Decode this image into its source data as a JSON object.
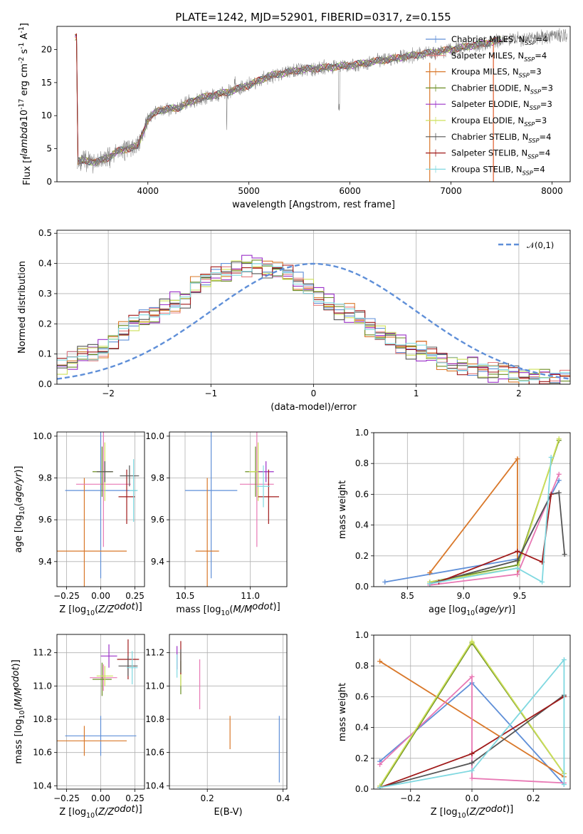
{
  "title": "PLATE=1242, MJD=52901, FIBERID=0317, z=0.155",
  "models": [
    {
      "label": "Chabrier MILES, N$_{SSP}$=4",
      "color": "#5f8fd8"
    },
    {
      "label": "Salpeter MILES, N$_{SSP}$=4",
      "color": "#e57d7d"
    },
    {
      "label": "Kroupa MILES, N$_{SSP}$=3",
      "color": "#d9782a"
    },
    {
      "label": "Chabrier ELODIE, N$_{SSP}$=3",
      "color": "#6b8e23"
    },
    {
      "label": "Salpeter ELODIE, N$_{SSP}$=3",
      "color": "#9b30c8"
    },
    {
      "label": "Kroupa ELODIE, N$_{SSP}$=3",
      "color": "#cde05a"
    },
    {
      "label": "Chabrier STELIB, N$_{SSP}$=4",
      "color": "#555555"
    },
    {
      "label": "Salpeter STELIB, N$_{SSP}$=4",
      "color": "#a01a1a"
    },
    {
      "label": "Kroupa STELIB, N$_{SSP}$=4",
      "color": "#7fd8e0"
    }
  ],
  "chart_data": [
    {
      "type": "line",
      "xlabel": "wavelength [Angstrom, rest frame]",
      "ylabel": "Flux [f$_\\lambda$10$^{-17}$ erg cm$^{-2}$ s$^{-1}$ A$^{-1}$]",
      "xlim": [
        3100,
        8180
      ],
      "ylim": [
        0,
        23.5
      ],
      "xticks": [
        4000,
        5000,
        6000,
        7000,
        8000
      ],
      "yticks": [
        0,
        5,
        10,
        15,
        20
      ],
      "observed_color": "#808080",
      "continuum_anchors": [
        [
          3300,
          3.2
        ],
        [
          3500,
          3.0
        ],
        [
          3600,
          3.6
        ],
        [
          3700,
          4.6
        ],
        [
          3900,
          5.4
        ],
        [
          4000,
          9.4
        ],
        [
          4100,
          10.8
        ],
        [
          4300,
          11.2
        ],
        [
          4500,
          12.6
        ],
        [
          4800,
          13.6
        ],
        [
          5000,
          14.6
        ],
        [
          5200,
          16.0
        ],
        [
          5500,
          16.9
        ],
        [
          6000,
          17.6
        ],
        [
          6500,
          18.8
        ],
        [
          7000,
          20.0
        ],
        [
          7500,
          21.4
        ],
        [
          8000,
          22.0
        ]
      ],
      "grid": false,
      "legend": "top-right"
    },
    {
      "type": "line",
      "xlabel": "(data-model)/error",
      "ylabel": "Normed distribution",
      "xlim": [
        -2.5,
        2.5
      ],
      "ylim": [
        0,
        0.51
      ],
      "xticks": [
        -2,
        -1,
        0,
        1,
        2
      ],
      "yticks": [
        0.0,
        0.1,
        0.2,
        0.3,
        0.4,
        0.5
      ],
      "reference_label": "$\\mathcal{N}(0,1)$",
      "reference_color": "#5f8fd8",
      "bin_width": 0.1,
      "hist_values": [
        0.06,
        0.08,
        0.1,
        0.1,
        0.12,
        0.15,
        0.17,
        0.2,
        0.22,
        0.23,
        0.25,
        0.27,
        0.29,
        0.32,
        0.34,
        0.36,
        0.37,
        0.38,
        0.39,
        0.4,
        0.38,
        0.37,
        0.36,
        0.34,
        0.32,
        0.29,
        0.27,
        0.25,
        0.23,
        0.21,
        0.19,
        0.17,
        0.15,
        0.13,
        0.12,
        0.11,
        0.09,
        0.08,
        0.07,
        0.06,
        0.06,
        0.05,
        0.04,
        0.04,
        0.03,
        0.03,
        0.03,
        0.02,
        0.02,
        0.02
      ],
      "grid": true,
      "legend": "top-right"
    },
    {
      "type": "scatter",
      "xlabel": "Z [log$_{10}$($Z/Z_\\odot$)]",
      "ylabel": "age  [log$_{10}$($age/yr$)]",
      "xlim": [
        -0.32,
        0.32
      ],
      "ylim": [
        9.28,
        10.02
      ],
      "xticks": [
        -0.25,
        0.0,
        0.25
      ],
      "yticks": [
        9.4,
        9.6,
        9.8,
        10.0
      ],
      "points": [
        {
          "x": 0.0,
          "y": 9.74,
          "xerr": 0.26,
          "yerr": 0.42,
          "color": "#5f8fd8"
        },
        {
          "x": -0.12,
          "y": 9.45,
          "xerr": 0.31,
          "yerr": 0.35,
          "color": "#d9782a"
        },
        {
          "x": 0.02,
          "y": 9.77,
          "xerr": 0.2,
          "yerr": 0.3,
          "color": "#e878b4"
        },
        {
          "x": 0.01,
          "y": 9.83,
          "xerr": 0.07,
          "yerr": 0.12,
          "color": "#6b8e23"
        },
        {
          "x": 0.03,
          "y": 9.83,
          "xerr": 0.06,
          "yerr": 0.14,
          "color": "#cde05a"
        },
        {
          "x": 0.03,
          "y": 9.83,
          "xerr": 0.06,
          "yerr": 0.05,
          "color": "#555555"
        },
        {
          "x": 0.19,
          "y": 9.71,
          "xerr": 0.06,
          "yerr": 0.13,
          "color": "#a01a1a"
        },
        {
          "x": 0.21,
          "y": 9.81,
          "xerr": 0.07,
          "yerr": 0.05,
          "color": "#555555"
        },
        {
          "x": 0.24,
          "y": 9.74,
          "xerr": 0.03,
          "yerr": 0.15,
          "color": "#7fd8e0"
        }
      ],
      "grid": true
    },
    {
      "type": "scatter",
      "xlabel": "mass [log$_{10}$($M/M_\\odot$)]",
      "ylabel": "",
      "xlim": [
        10.38,
        11.28
      ],
      "ylim": [
        9.28,
        10.02
      ],
      "xticks": [
        10.5,
        11.0
      ],
      "yticks": [
        9.4,
        9.6,
        9.8,
        10.0
      ],
      "points": [
        {
          "x": 10.7,
          "y": 9.74,
          "xerr": 0.2,
          "yerr": 0.42,
          "color": "#5f8fd8"
        },
        {
          "x": 10.67,
          "y": 9.45,
          "xerr": 0.09,
          "yerr": 0.35,
          "color": "#d9782a"
        },
        {
          "x": 11.05,
          "y": 9.77,
          "xerr": 0.13,
          "yerr": 0.3,
          "color": "#e878b4"
        },
        {
          "x": 11.04,
          "y": 9.83,
          "xerr": 0.08,
          "yerr": 0.12,
          "color": "#6b8e23"
        },
        {
          "x": 11.06,
          "y": 9.83,
          "xerr": 0.07,
          "yerr": 0.14,
          "color": "#cde05a"
        },
        {
          "x": 11.12,
          "y": 9.83,
          "xerr": 0.06,
          "yerr": 0.05,
          "color": "#9b30c8"
        },
        {
          "x": 11.14,
          "y": 9.71,
          "xerr": 0.08,
          "yerr": 0.13,
          "color": "#a01a1a"
        },
        {
          "x": 11.1,
          "y": 9.76,
          "xerr": 0.05,
          "yerr": 0.1,
          "color": "#7fd8e0"
        }
      ],
      "grid": true
    },
    {
      "type": "line",
      "xlabel": "age  [log$_{10}$($age/yr$)]",
      "ylabel": "mass weight",
      "xlim": [
        8.2,
        9.95
      ],
      "ylim": [
        0,
        1.0
      ],
      "xticks": [
        8.5,
        9.0,
        9.5
      ],
      "yticks": [
        0.0,
        0.2,
        0.4,
        0.6,
        0.8,
        1.0
      ],
      "series": [
        {
          "color": "#5f8fd8",
          "x": [
            8.3,
            9.48,
            9.85
          ],
          "y": [
            0.03,
            0.18,
            0.69
          ]
        },
        {
          "color": "#d9782a",
          "x": [
            8.7,
            9.48,
            9.48
          ],
          "y": [
            0.09,
            0.83,
            0.08
          ]
        },
        {
          "color": "#e878b4",
          "x": [
            8.7,
            9.48,
            9.85
          ],
          "y": [
            0.01,
            0.08,
            0.73
          ]
        },
        {
          "color": "#6b8e23",
          "x": [
            8.7,
            9.48,
            9.85
          ],
          "y": [
            0.03,
            0.14,
            0.95
          ]
        },
        {
          "color": "#cde05a",
          "x": [
            8.7,
            9.48,
            9.85
          ],
          "y": [
            0.03,
            0.12,
            0.96
          ]
        },
        {
          "color": "#555555",
          "x": [
            8.7,
            9.48,
            9.78,
            9.85,
            9.9
          ],
          "y": [
            0.02,
            0.17,
            0.6,
            0.61,
            0.21
          ]
        },
        {
          "color": "#a01a1a",
          "x": [
            8.78,
            9.48,
            9.7,
            9.78
          ],
          "y": [
            0.03,
            0.23,
            0.16,
            0.6
          ]
        },
        {
          "color": "#7fd8e0",
          "x": [
            8.7,
            9.48,
            9.7,
            9.78
          ],
          "y": [
            0.02,
            0.12,
            0.03,
            0.84
          ]
        }
      ],
      "grid": true
    },
    {
      "type": "scatter",
      "xlabel": "Z [log$_{10}$($Z/Z_\\odot$)]",
      "ylabel": "mass [log$_{10}$($M/M_\\odot$)]",
      "xlim": [
        -0.32,
        0.32
      ],
      "ylim": [
        10.38,
        11.31
      ],
      "xticks": [
        -0.25,
        0.0,
        0.25
      ],
      "yticks": [
        10.4,
        10.6,
        10.8,
        11.0,
        11.2
      ],
      "points": [
        {
          "x": 0.0,
          "y": 10.7,
          "xerr": 0.26,
          "yerr": 0.12,
          "color": "#5f8fd8"
        },
        {
          "x": -0.12,
          "y": 10.67,
          "xerr": 0.31,
          "yerr": 0.09,
          "color": "#d9782a"
        },
        {
          "x": 0.02,
          "y": 11.05,
          "xerr": 0.1,
          "yerr": 0.08,
          "color": "#e878b4"
        },
        {
          "x": 0.01,
          "y": 11.04,
          "xerr": 0.07,
          "yerr": 0.1,
          "color": "#6b8e23"
        },
        {
          "x": 0.03,
          "y": 11.06,
          "xerr": 0.06,
          "yerr": 0.06,
          "color": "#cde05a"
        },
        {
          "x": 0.06,
          "y": 11.18,
          "xerr": 0.06,
          "yerr": 0.07,
          "color": "#9b30c8"
        },
        {
          "x": 0.2,
          "y": 11.16,
          "xerr": 0.08,
          "yerr": 0.12,
          "color": "#a01a1a"
        },
        {
          "x": 0.2,
          "y": 11.12,
          "xerr": 0.07,
          "yerr": 0.06,
          "color": "#555555"
        },
        {
          "x": 0.23,
          "y": 11.11,
          "xerr": 0.04,
          "yerr": 0.1,
          "color": "#7fd8e0"
        }
      ],
      "grid": true
    },
    {
      "type": "scatter",
      "xlabel": "E(B-V)",
      "ylabel": "",
      "xlim": [
        0.1,
        0.41
      ],
      "ylim": [
        10.38,
        11.31
      ],
      "xticks": [
        0.2,
        0.4
      ],
      "yticks": [
        10.4,
        10.6,
        10.8,
        11.0,
        11.2
      ],
      "points": [
        {
          "x": 0.39,
          "y": 10.62,
          "yerr": 0.2,
          "color": "#5f8fd8"
        },
        {
          "x": 0.26,
          "y": 10.72,
          "yerr": 0.1,
          "color": "#d9782a"
        },
        {
          "x": 0.18,
          "y": 11.01,
          "yerr": 0.15,
          "color": "#e878b4"
        },
        {
          "x": 0.13,
          "y": 11.05,
          "yerr": 0.1,
          "color": "#6b8e23"
        },
        {
          "x": 0.13,
          "y": 11.1,
          "yerr": 0.1,
          "color": "#cde05a"
        },
        {
          "x": 0.12,
          "y": 11.17,
          "yerr": 0.07,
          "color": "#9b30c8"
        },
        {
          "x": 0.13,
          "y": 11.17,
          "yerr": 0.1,
          "color": "#a01a1a"
        },
        {
          "x": 0.13,
          "y": 11.15,
          "yerr": 0.07,
          "color": "#555555"
        },
        {
          "x": 0.12,
          "y": 11.12,
          "yerr": 0.07,
          "color": "#7fd8e0"
        }
      ],
      "grid": true
    },
    {
      "type": "line",
      "xlabel": "Z [log$_{10}$($Z/Z_\\odot$)]",
      "ylabel": "mass weight",
      "xlim": [
        -0.32,
        0.32
      ],
      "ylim": [
        0,
        1.0
      ],
      "xticks": [
        -0.2,
        0.0,
        0.2
      ],
      "yticks": [
        0.0,
        0.2,
        0.4,
        0.6,
        0.8,
        1.0
      ],
      "series": [
        {
          "color": "#5f8fd8",
          "x": [
            -0.3,
            0.0,
            0.3
          ],
          "y": [
            0.18,
            0.69,
            0.03
          ]
        },
        {
          "color": "#d9782a",
          "x": [
            -0.3,
            0.3
          ],
          "y": [
            0.83,
            0.08
          ]
        },
        {
          "color": "#e878b4",
          "x": [
            -0.3,
            0.0,
            0.0,
            0.3
          ],
          "y": [
            0.16,
            0.73,
            0.07,
            0.04
          ]
        },
        {
          "color": "#6b8e23",
          "x": [
            -0.3,
            0.0,
            0.3
          ],
          "y": [
            0.01,
            0.95,
            0.1
          ]
        },
        {
          "color": "#cde05a",
          "x": [
            -0.3,
            0.0,
            0.3
          ],
          "y": [
            0.02,
            0.96,
            0.1
          ]
        },
        {
          "color": "#555555",
          "x": [
            -0.3,
            0.0,
            0.3
          ],
          "y": [
            0.01,
            0.17,
            0.61
          ]
        },
        {
          "color": "#a01a1a",
          "x": [
            -0.3,
            0.0,
            0.3
          ],
          "y": [
            0.01,
            0.23,
            0.6
          ]
        },
        {
          "color": "#7fd8e0",
          "x": [
            -0.3,
            0.0,
            0.3,
            0.3
          ],
          "y": [
            0.01,
            0.12,
            0.84,
            0.03
          ]
        }
      ],
      "grid": true
    }
  ]
}
